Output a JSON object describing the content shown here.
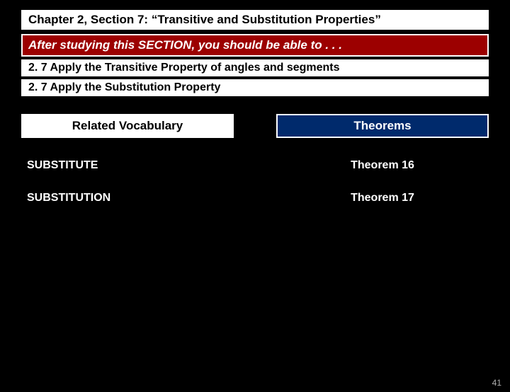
{
  "title": "Chapter 2, Section 7:  “Transitive and Substitution Properties”",
  "objectives_intro": "After studying this SECTION, you should be able to . . .",
  "objectives": [
    "2. 7  Apply the Transitive Property of angles and segments",
    "2. 7  Apply the Substitution Property"
  ],
  "vocab_header": "Related Vocabulary",
  "theorems_header": "Theorems",
  "vocab_items": [
    "SUBSTITUTE",
    "SUBSTITUTION"
  ],
  "theorem_items": [
    "Theorem 16",
    "Theorem 17"
  ],
  "page_number": "41",
  "colors": {
    "background": "#000000",
    "title_bg": "#ffffff",
    "objectives_bg": "#9c0000",
    "theorems_header_bg": "#002a6c",
    "text_light": "#ffffff",
    "text_dark": "#000000",
    "page_num_color": "#b0b0b0"
  }
}
